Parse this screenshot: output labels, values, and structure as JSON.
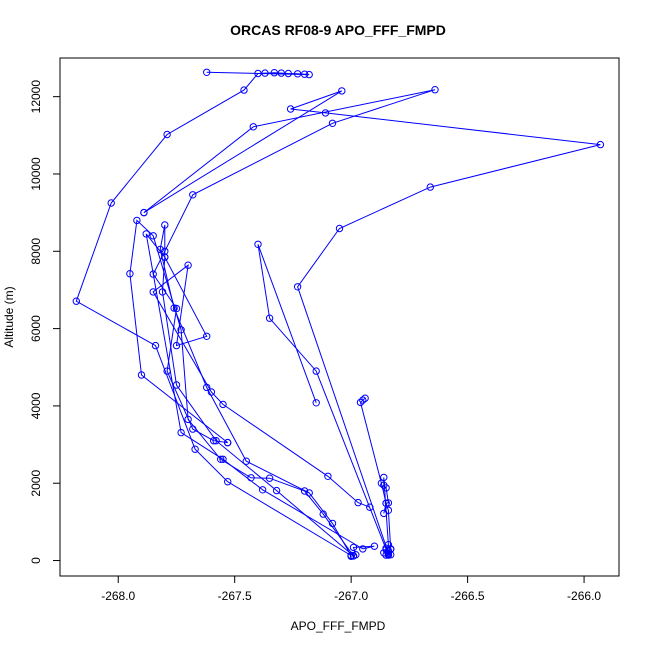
{
  "chart_data": {
    "type": "line",
    "title": "ORCAS RF08-9 APO_FFF_FMPD",
    "xlabel": "APO_FFF_FMPD",
    "ylabel": "Altitude (m)",
    "xlim": [
      -268.25,
      -265.85
    ],
    "ylim": [
      -400,
      13000
    ],
    "xticks": [
      -268.0,
      -267.5,
      -267.0,
      -266.5,
      -266.0
    ],
    "xtick_labels": [
      "-268.0",
      "-267.5",
      "-267.0",
      "-266.5",
      "-266.0"
    ],
    "yticks": [
      0,
      2000,
      4000,
      6000,
      8000,
      10000,
      12000
    ],
    "ytick_labels": [
      "0",
      "2000",
      "4000",
      "6000",
      "8000",
      "10000",
      "12000"
    ],
    "grid": false,
    "marker": "open-circle",
    "color": "#0000ff",
    "series": [
      {
        "x": [
          -267.0,
          -266.98,
          -266.99,
          -266.9,
          -266.95,
          -267.38,
          -267.55,
          -267.73,
          -267.88,
          -267.8,
          -267.62,
          -267.75,
          -267.7,
          -267.85,
          -267.6,
          -267.55,
          -267.1,
          -266.97,
          -266.92
        ],
        "y": [
          110,
          150,
          340,
          370,
          300,
          1830,
          2620,
          3310,
          8450,
          7850,
          5800,
          5560,
          7640,
          6950,
          4360,
          4040,
          2180,
          1500,
          1380
        ]
      },
      {
        "x": [
          -266.86,
          -266.85,
          -266.84,
          -266.85,
          -266.86,
          -266.86,
          -266.84,
          -266.83,
          -266.85,
          -266.83,
          -266.85,
          -266.84,
          -266.86,
          -266.85,
          -266.84
        ],
        "y": [
          1220,
          1480,
          1490,
          1880,
          1950,
          2150,
          410,
          290,
          140,
          150,
          320,
          160,
          200,
          280,
          250
        ]
      },
      {
        "x": [
          -266.94,
          -266.95,
          -266.96,
          -266.87,
          -266.85,
          -266.84,
          -266.83
        ],
        "y": [
          4200,
          4150,
          4090,
          2000,
          1480,
          1300,
          300
        ]
      },
      {
        "x": [
          -267.15,
          -267.4,
          -267.35,
          -267.15,
          -266.84
        ],
        "y": [
          4080,
          8180,
          6270,
          4900,
          140
        ]
      },
      {
        "x": [
          -266.84,
          -267.23,
          -267.05,
          -266.66,
          -265.93,
          -267.11,
          -267.26,
          -267.04,
          -267.89
        ],
        "y": [
          190,
          7080,
          8590,
          9660,
          10760,
          11580,
          11680,
          12150,
          9000
        ]
      },
      {
        "x": [
          -267.89,
          -267.42,
          -266.64,
          -267.08,
          -267.68,
          -267.8,
          -267.85,
          -267.75,
          -267.79,
          -267.68,
          -267.59,
          -267.53
        ],
        "y": [
          9000,
          11220,
          12180,
          11310,
          9460,
          8000,
          7410,
          6520,
          4900,
          3400,
          3100,
          3050
        ]
      },
      {
        "x": [
          -267.53,
          -267.9,
          -267.95,
          -267.92,
          -267.85,
          -267.73,
          -267.7,
          -267.56,
          -267.43,
          -267.35,
          -267.2,
          -267.12,
          -266.99
        ],
        "y": [
          3050,
          4800,
          7420,
          8800,
          8400,
          5970,
          3650,
          2620,
          2140,
          2130,
          1800,
          1200,
          120
        ]
      },
      {
        "x": [
          -266.99,
          -267.32,
          -267.58,
          -267.75,
          -267.81,
          -267.8,
          -267.8,
          -267.82,
          -267.76,
          -267.62,
          -267.45,
          -267.18,
          -267.08,
          -267.0
        ],
        "y": [
          120,
          1810,
          3100,
          4540,
          6950,
          7850,
          8680,
          8050,
          6530,
          4480,
          2570,
          1750,
          960,
          130
        ]
      },
      {
        "x": [
          -267.0,
          -267.53,
          -267.67,
          -267.84,
          -268.18,
          -268.03,
          -267.79,
          -267.46,
          -267.4,
          -267.37,
          -267.33,
          -267.3,
          -267.27,
          -267.23,
          -267.2,
          -267.18,
          -267.62
        ],
        "y": [
          130,
          2040,
          2880,
          5560,
          6710,
          9250,
          11020,
          12170,
          12600,
          12610,
          12620,
          12610,
          12600,
          12590,
          12580,
          12570,
          12630
        ]
      }
    ]
  }
}
